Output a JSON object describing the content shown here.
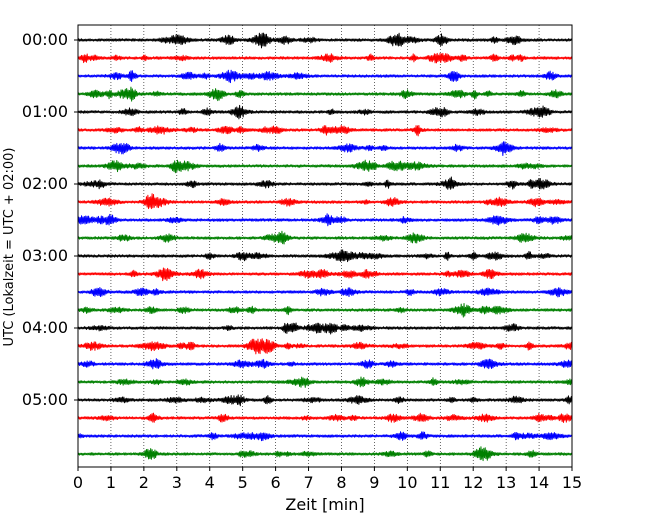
{
  "chart_data": {
    "type": "line",
    "chart_kind": "helicorder seismogram (day plot)",
    "title": "",
    "xlabel": "Zeit  [min]",
    "ylabel": "UTC (Lokalzeit = UTC + 02:00)",
    "xlim": [
      0,
      15
    ],
    "x_ticks": [
      0,
      1,
      2,
      3,
      4,
      5,
      6,
      7,
      8,
      9,
      10,
      11,
      12,
      13,
      14,
      15
    ],
    "x_tick_labels": [
      "0",
      "1",
      "2",
      "3",
      "4",
      "5",
      "6",
      "7",
      "8",
      "9",
      "10",
      "11",
      "12",
      "13",
      "14",
      "15"
    ],
    "y_tick_labels": [
      "00:00",
      "01:00",
      "02:00",
      "03:00",
      "04:00",
      "05:00"
    ],
    "minutes_per_line": 15,
    "line_count": 24,
    "trace_colors": [
      "#000000",
      "#ff0000",
      "#0000ff",
      "#008000"
    ],
    "x_grid": "dotted vertical lines at every minute",
    "y_grid": false,
    "legend": "none",
    "notable_events": [
      {
        "line_start": "05:45",
        "minute": 12.3,
        "description": "larger burst"
      },
      {
        "line_start": "04:15",
        "minute": 5.4,
        "description": "larger burst"
      },
      {
        "line_start": "00:00",
        "minute": 9.7,
        "description": "larger burst"
      }
    ]
  }
}
